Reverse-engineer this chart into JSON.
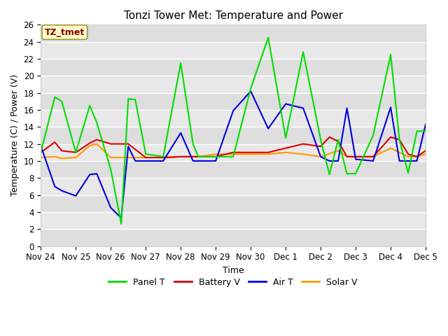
{
  "title": "Tonzi Tower Met: Temperature and Power",
  "xlabel": "Time",
  "ylabel": "Temperature (C) / Power (V)",
  "ylim": [
    0,
    26
  ],
  "yticks": [
    0,
    2,
    4,
    6,
    8,
    10,
    12,
    14,
    16,
    18,
    20,
    22,
    24,
    26
  ],
  "xtick_labels": [
    "Nov 24",
    "Nov 25",
    "Nov 26",
    "Nov 27",
    "Nov 28",
    "Nov 29",
    "Nov 30",
    "Dec 1",
    "Dec 2",
    "Dec 3",
    "Dec 4",
    "Dec 5"
  ],
  "annotation_text": "TZ_tmet",
  "annotation_color": "#8B0000",
  "annotation_bg": "#FFFFCC",
  "annotation_edgecolor": "#999933",
  "fig_bg": "#FFFFFF",
  "plot_bg": "#E8E8E8",
  "grid_color": "#FFFFFF",
  "panel_t": {
    "label": "Panel T",
    "color": "#00DD00",
    "x": [
      0,
      0.4,
      0.6,
      1.0,
      1.4,
      1.6,
      2.0,
      2.3,
      2.5,
      2.7,
      3.0,
      3.5,
      4.0,
      4.35,
      4.5,
      5.0,
      5.5,
      6.0,
      6.5,
      7.0,
      7.5,
      8.0,
      8.25,
      8.5,
      8.75,
      9.0,
      9.5,
      10.0,
      10.25,
      10.5,
      10.75,
      11.0
    ],
    "y": [
      11.0,
      17.5,
      17.0,
      11.0,
      16.5,
      14.5,
      9.0,
      2.6,
      17.3,
      17.2,
      10.8,
      10.5,
      21.5,
      12.0,
      10.5,
      10.5,
      10.5,
      18.5,
      24.5,
      12.7,
      22.8,
      12.5,
      8.4,
      12.5,
      8.5,
      8.5,
      13.0,
      22.5,
      12.5,
      8.6,
      13.5,
      13.5
    ]
  },
  "battery_v": {
    "label": "Battery V",
    "color": "#DD0000",
    "x": [
      0,
      0.4,
      0.6,
      1.0,
      1.4,
      1.6,
      2.0,
      2.5,
      3.0,
      3.5,
      4.0,
      4.5,
      5.0,
      5.5,
      6.0,
      6.5,
      7.0,
      7.5,
      8.0,
      8.25,
      8.5,
      8.75,
      9.0,
      9.5,
      10.0,
      10.25,
      10.5,
      10.75,
      11.0
    ],
    "y": [
      11.0,
      12.2,
      11.2,
      11.0,
      12.1,
      12.5,
      12.0,
      12.0,
      10.4,
      10.4,
      10.5,
      10.5,
      10.5,
      11.0,
      11.0,
      11.0,
      11.5,
      12.0,
      11.7,
      12.8,
      12.3,
      10.5,
      10.5,
      10.5,
      12.8,
      12.5,
      10.8,
      10.5,
      11.2
    ]
  },
  "air_t": {
    "label": "Air T",
    "color": "#0000DD",
    "x": [
      0,
      0.4,
      0.6,
      1.0,
      1.4,
      1.6,
      2.0,
      2.3,
      2.5,
      2.7,
      3.0,
      3.5,
      4.0,
      4.35,
      4.5,
      5.0,
      5.5,
      6.0,
      6.5,
      7.0,
      7.5,
      8.0,
      8.25,
      8.5,
      8.75,
      9.0,
      9.5,
      10.0,
      10.25,
      10.5,
      10.75,
      11.0
    ],
    "y": [
      11.8,
      7.0,
      6.5,
      5.9,
      8.4,
      8.5,
      4.5,
      3.3,
      11.7,
      10.0,
      10.0,
      10.0,
      13.3,
      10.0,
      10.0,
      10.0,
      15.9,
      18.2,
      13.8,
      16.7,
      16.2,
      10.5,
      10.0,
      10.0,
      16.2,
      10.2,
      10.0,
      16.3,
      10.0,
      10.0,
      10.0,
      14.3
    ]
  },
  "solar_v": {
    "label": "Solar V",
    "color": "#FF9900",
    "x": [
      0,
      0.4,
      0.6,
      1.0,
      1.4,
      1.6,
      2.0,
      2.5,
      3.0,
      3.5,
      4.0,
      4.5,
      5.0,
      5.5,
      6.0,
      6.5,
      7.0,
      7.5,
      8.0,
      8.5,
      8.75,
      9.0,
      9.5,
      10.0,
      10.5,
      10.75,
      11.0
    ],
    "y": [
      10.4,
      10.5,
      10.3,
      10.4,
      11.8,
      12.0,
      10.4,
      10.4,
      10.4,
      10.4,
      10.5,
      10.5,
      10.8,
      10.8,
      10.8,
      10.8,
      11.0,
      10.8,
      10.5,
      11.2,
      10.5,
      10.5,
      10.5,
      11.5,
      10.5,
      10.5,
      10.8
    ]
  }
}
